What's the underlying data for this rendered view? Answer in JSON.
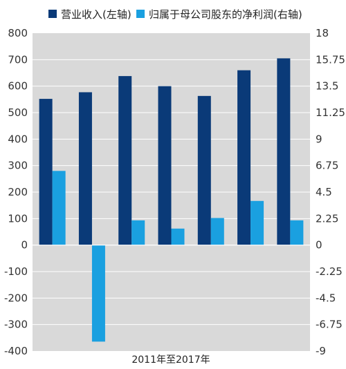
{
  "chart_data": {
    "type": "bar",
    "categories": [
      "",
      "",
      "",
      "",
      "",
      "",
      ""
    ],
    "xlabel": "2011年至2017年",
    "series": [
      {
        "name": "营业收入(左轴)",
        "axis": "left",
        "color": "#0a3a78",
        "values": [
          552,
          577,
          638,
          600,
          563,
          660,
          705
        ]
      },
      {
        "name": "归属于母公司股东的净利润(右轴)",
        "axis": "right",
        "color": "#1aa0e0",
        "values": [
          6.3,
          -8.2,
          2.1,
          1.4,
          2.3,
          3.75,
          2.1
        ]
      }
    ],
    "y_left": {
      "ylim": [
        -400,
        800
      ],
      "ticks": [
        "800",
        "700",
        "600",
        "500",
        "400",
        "300",
        "200",
        "100",
        "0",
        "-100",
        "-200",
        "-300",
        "-400"
      ]
    },
    "y_right": {
      "ylim": [
        -9,
        18
      ],
      "ticks": [
        "18",
        "15.75",
        "13.5",
        "11.25",
        "9",
        "6.75",
        "4.5",
        "2.25",
        "0",
        "-2.25",
        "-4.5",
        "-6.75",
        "-9"
      ]
    },
    "plot_background": "#d9d9d9",
    "grid": "horizontal",
    "legend_position": "top"
  }
}
